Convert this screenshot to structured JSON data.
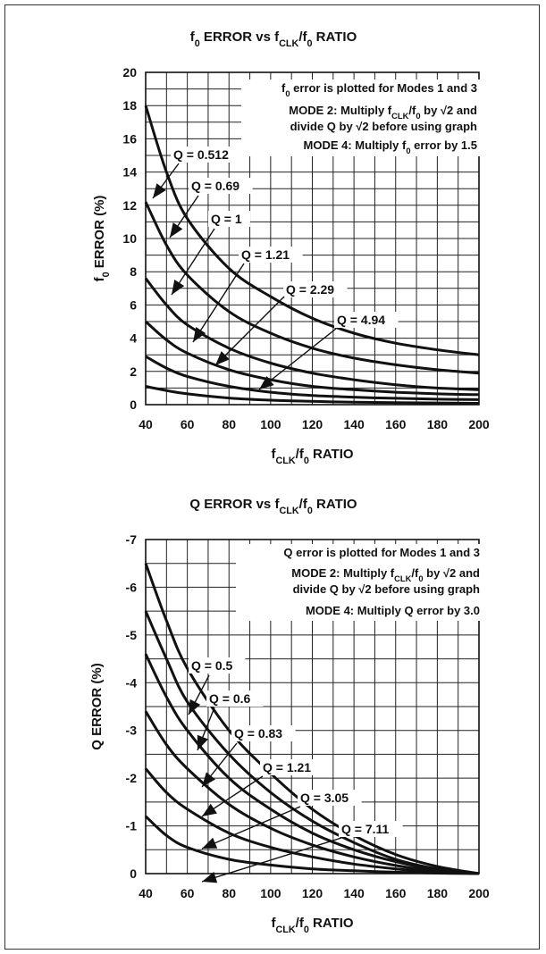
{
  "chart_data": [
    {
      "type": "line",
      "title": "f0 ERROR vs fCLK/f0 RATIO",
      "xlabel": "fCLK/f0 RATIO",
      "ylabel": "f0 ERROR (%)",
      "xlim": [
        40,
        200
      ],
      "ylim": [
        0,
        20
      ],
      "grid": true,
      "x_ticks": [
        40,
        60,
        80,
        100,
        120,
        140,
        160,
        180,
        200
      ],
      "y_ticks": [
        0,
        2,
        4,
        6,
        8,
        10,
        12,
        14,
        16,
        18,
        20
      ],
      "notes": [
        "f0 error is plotted for Modes 1 and 3",
        "MODE 2: Multiply fCLK/f0 by √2 and",
        "divide Q by √2 before using graph",
        "MODE 4: Multiply f0 error by 1.5"
      ],
      "x": [
        40,
        50,
        60,
        80,
        100,
        120,
        140,
        160,
        180,
        200
      ],
      "series": [
        {
          "name": "Q = 0.512",
          "values": [
            18.0,
            14.0,
            11.2,
            8.2,
            6.5,
            5.2,
            4.3,
            3.7,
            3.3,
            3.0
          ]
        },
        {
          "name": "Q = 0.69",
          "values": [
            12.2,
            9.6,
            7.8,
            5.6,
            4.3,
            3.4,
            2.8,
            2.4,
            2.1,
            1.9
          ]
        },
        {
          "name": "Q = 1",
          "values": [
            7.6,
            6.0,
            4.8,
            3.4,
            2.5,
            1.9,
            1.5,
            1.2,
            1.0,
            0.9
          ]
        },
        {
          "name": "Q = 1.21",
          "values": [
            5.0,
            3.9,
            3.1,
            2.1,
            1.5,
            1.1,
            0.9,
            0.75,
            0.65,
            0.6
          ]
        },
        {
          "name": "Q = 2.29",
          "values": [
            2.9,
            2.2,
            1.7,
            1.1,
            0.75,
            0.55,
            0.45,
            0.38,
            0.33,
            0.3
          ]
        },
        {
          "name": "Q = 4.94",
          "values": [
            1.1,
            0.85,
            0.65,
            0.4,
            0.27,
            0.2,
            0.15,
            0.12,
            0.1,
            0.08
          ]
        }
      ]
    },
    {
      "type": "line",
      "title": "Q ERROR vs fCLK/f0 RATIO",
      "xlabel": "fCLK/f0 RATIO",
      "ylabel": "Q ERROR (%)",
      "xlim": [
        40,
        200
      ],
      "ylim": [
        0,
        -7
      ],
      "grid": true,
      "x_ticks": [
        40,
        60,
        80,
        100,
        120,
        140,
        160,
        180,
        200
      ],
      "y_ticks": [
        0,
        -1,
        -2,
        -3,
        -4,
        -5,
        -6,
        -7
      ],
      "notes": [
        "Q error is plotted for Modes 1 and 3",
        "MODE 2: Multiply fCLK/f0 by √2 and",
        "divide Q by √2 before using graph",
        "MODE 4: Multiply Q error by 3.0"
      ],
      "x": [
        40,
        50,
        60,
        80,
        100,
        120,
        140,
        160,
        180,
        200
      ],
      "series": [
        {
          "name": "Q = 0.5",
          "values": [
            -6.5,
            -5.3,
            -4.3,
            -3.0,
            -2.1,
            -1.35,
            -0.8,
            -0.4,
            -0.15,
            0
          ]
        },
        {
          "name": "Q = 0.6",
          "values": [
            -5.5,
            -4.5,
            -3.6,
            -2.5,
            -1.7,
            -1.1,
            -0.65,
            -0.3,
            -0.1,
            0
          ]
        },
        {
          "name": "Q = 0.83",
          "values": [
            -4.6,
            -3.7,
            -3.0,
            -2.0,
            -1.35,
            -0.85,
            -0.5,
            -0.25,
            -0.08,
            0
          ]
        },
        {
          "name": "Q = 1.21",
          "values": [
            -3.4,
            -2.7,
            -2.2,
            -1.45,
            -0.95,
            -0.6,
            -0.35,
            -0.17,
            -0.05,
            0
          ]
        },
        {
          "name": "Q = 3.05",
          "values": [
            -2.2,
            -1.7,
            -1.35,
            -0.85,
            -0.55,
            -0.35,
            -0.2,
            -0.1,
            -0.03,
            0
          ]
        },
        {
          "name": "Q = 7.11",
          "values": [
            -1.2,
            -0.8,
            -0.55,
            -0.3,
            -0.18,
            -0.1,
            -0.06,
            -0.03,
            -0.01,
            0
          ]
        }
      ]
    }
  ]
}
